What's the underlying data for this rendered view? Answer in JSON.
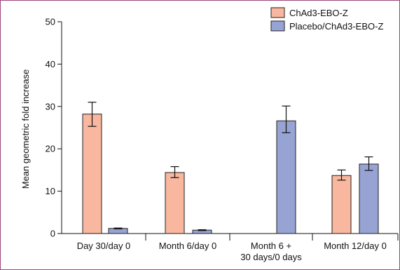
{
  "chart_data": {
    "type": "bar",
    "ylabel": "Mean geometric fold increase",
    "xlabel": "",
    "ylim": [
      0,
      50
    ],
    "yticks": [
      0,
      10,
      20,
      30,
      40,
      50
    ],
    "grid": false,
    "legend_position": "top-right",
    "categories": [
      [
        "Day 30/day 0"
      ],
      [
        "Month 6/day 0"
      ],
      [
        "Month 6 +",
        "30 days/0 days"
      ],
      [
        "Month 12/day 0"
      ]
    ],
    "series": [
      {
        "name": "ChAd3-EBO-Z",
        "color": "#f8b79e",
        "values": [
          28.2,
          14.4,
          null,
          13.7
        ],
        "err_low": [
          25.3,
          13.2,
          null,
          12.6
        ],
        "err_high": [
          31.0,
          15.8,
          null,
          15.0
        ]
      },
      {
        "name": "Placebo/ChAd3-EBO-Z",
        "color": "#97a3d3",
        "values": [
          1.2,
          0.8,
          26.6,
          16.4
        ],
        "err_low": [
          1.1,
          0.7,
          23.8,
          14.9
        ],
        "err_high": [
          1.3,
          0.9,
          30.1,
          18.1
        ]
      }
    ]
  }
}
